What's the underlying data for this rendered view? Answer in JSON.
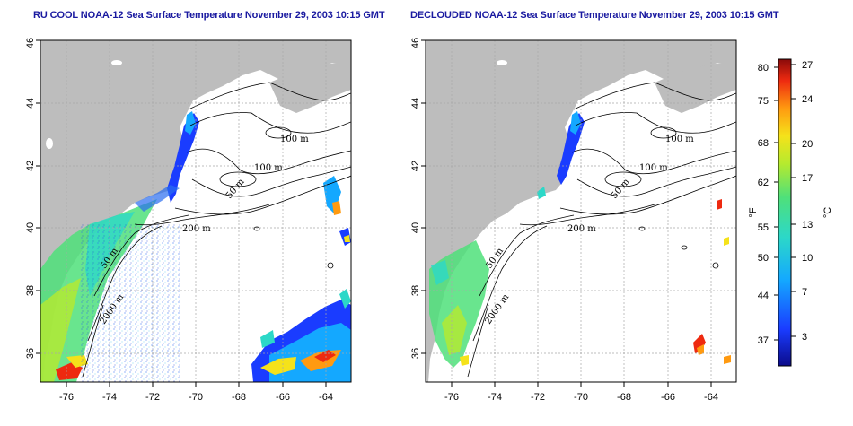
{
  "panels": [
    {
      "title": "RU COOL NOAA-12 Sea Surface Temperature November 29, 2003 10:15 GMT",
      "x_ticks": [
        "-76",
        "-74",
        "-72",
        "-70",
        "-68",
        "-66",
        "-64"
      ],
      "y_ticks": [
        "36",
        "38",
        "40",
        "42",
        "44",
        "46"
      ],
      "contour_labels": [
        "100 m",
        "100 m",
        "50 m",
        "200 m",
        "50 m",
        "2000 m"
      ]
    },
    {
      "title": "DECLOUDED NOAA-12 Sea Surface Temperature November 29, 2003 10:15 GMT",
      "x_ticks": [
        "-76",
        "-74",
        "-72",
        "-70",
        "-68",
        "-66",
        "-64"
      ],
      "y_ticks": [
        "36",
        "38",
        "40",
        "42",
        "44",
        "46"
      ],
      "contour_labels": [
        "100 m",
        "100 m",
        "50 m",
        "200 m",
        "50 m",
        "2000 m"
      ]
    }
  ],
  "colorbar": {
    "unit_left": "°F",
    "unit_right": "°C",
    "f_ticks": [
      "80",
      "75",
      "68",
      "62",
      "55",
      "50",
      "44",
      "37"
    ],
    "c_ticks": [
      "27",
      "24",
      "20",
      "17",
      "13",
      "10",
      "7",
      "3"
    ]
  },
  "colors": {
    "land": "#bdbdbd",
    "title": "#1a1aa0",
    "grid": "#a8a8a8"
  }
}
